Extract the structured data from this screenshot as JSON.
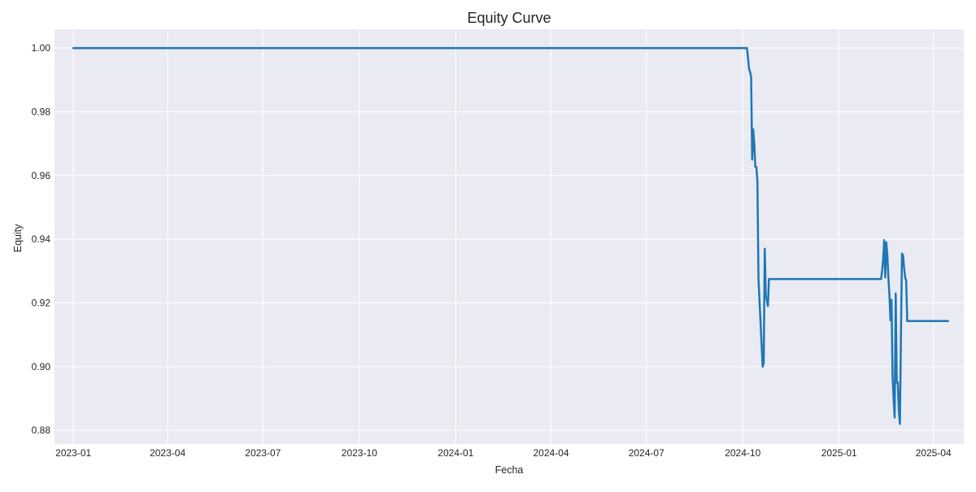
{
  "chart_data": {
    "type": "line",
    "title": "Equity Curve",
    "xlabel": "Fecha",
    "ylabel": "Equity",
    "x_ticks": [
      "2023-01",
      "2023-04",
      "2023-07",
      "2023-10",
      "2024-01",
      "2024-04",
      "2024-07",
      "2024-10",
      "2025-01",
      "2025-04"
    ],
    "y_ticks": [
      0.88,
      0.9,
      0.92,
      0.94,
      0.96,
      0.98,
      1.0
    ],
    "y_tick_labels": [
      "0.88",
      "0.90",
      "0.92",
      "0.94",
      "0.96",
      "0.98",
      "1.00"
    ],
    "xlim": [
      "2022-12-14",
      "2025-04-30"
    ],
    "ylim": [
      0.8757,
      1.0059
    ],
    "grid": true,
    "legend": "none",
    "colors": {
      "line": "#1f77b4",
      "background": "#eaeaf2",
      "grid": "#ffffff"
    },
    "series": [
      {
        "points": [
          [
            "2023-01-01",
            1.0
          ],
          [
            "2024-10-04",
            1.0
          ],
          [
            "2024-10-05",
            1.0
          ],
          [
            "2024-10-06",
            0.997
          ],
          [
            "2024-10-07",
            0.9935
          ],
          [
            "2024-10-08",
            0.9925
          ],
          [
            "2024-10-09",
            0.991
          ],
          [
            "2024-10-10",
            0.965
          ],
          [
            "2024-10-11",
            0.9745
          ],
          [
            "2024-10-12",
            0.97
          ],
          [
            "2024-10-13",
            0.9627
          ],
          [
            "2024-10-14",
            0.9627
          ],
          [
            "2024-10-15",
            0.958
          ],
          [
            "2024-10-16",
            0.9275
          ],
          [
            "2024-10-20",
            0.9
          ],
          [
            "2024-10-21",
            0.901
          ],
          [
            "2024-10-22",
            0.937
          ],
          [
            "2024-10-23",
            0.922
          ],
          [
            "2024-10-24",
            0.921
          ],
          [
            "2024-10-25",
            0.919
          ],
          [
            "2024-10-26",
            0.9275
          ],
          [
            "2025-02-10",
            0.9275
          ],
          [
            "2025-02-11",
            0.93
          ],
          [
            "2025-02-12",
            0.9335
          ],
          [
            "2025-02-13",
            0.9397
          ],
          [
            "2025-02-14",
            0.928
          ],
          [
            "2025-02-15",
            0.939
          ],
          [
            "2025-02-16",
            0.935
          ],
          [
            "2025-02-17",
            0.928
          ],
          [
            "2025-02-18",
            0.9225
          ],
          [
            "2025-02-19",
            0.9145
          ],
          [
            "2025-02-20",
            0.921
          ],
          [
            "2025-02-21",
            0.897
          ],
          [
            "2025-02-22",
            0.89
          ],
          [
            "2025-02-23",
            0.884
          ],
          [
            "2025-02-24",
            0.923
          ],
          [
            "2025-02-25",
            0.895
          ],
          [
            "2025-02-26",
            0.895
          ],
          [
            "2025-02-27",
            0.886
          ],
          [
            "2025-02-28",
            0.882
          ],
          [
            "2025-03-01",
            0.91
          ],
          [
            "2025-03-02",
            0.9355
          ],
          [
            "2025-03-03",
            0.935
          ],
          [
            "2025-03-04",
            0.931
          ],
          [
            "2025-03-05",
            0.928
          ],
          [
            "2025-03-06",
            0.927
          ],
          [
            "2025-03-07",
            0.9143
          ],
          [
            "2025-04-15",
            0.9143
          ]
        ]
      }
    ]
  }
}
